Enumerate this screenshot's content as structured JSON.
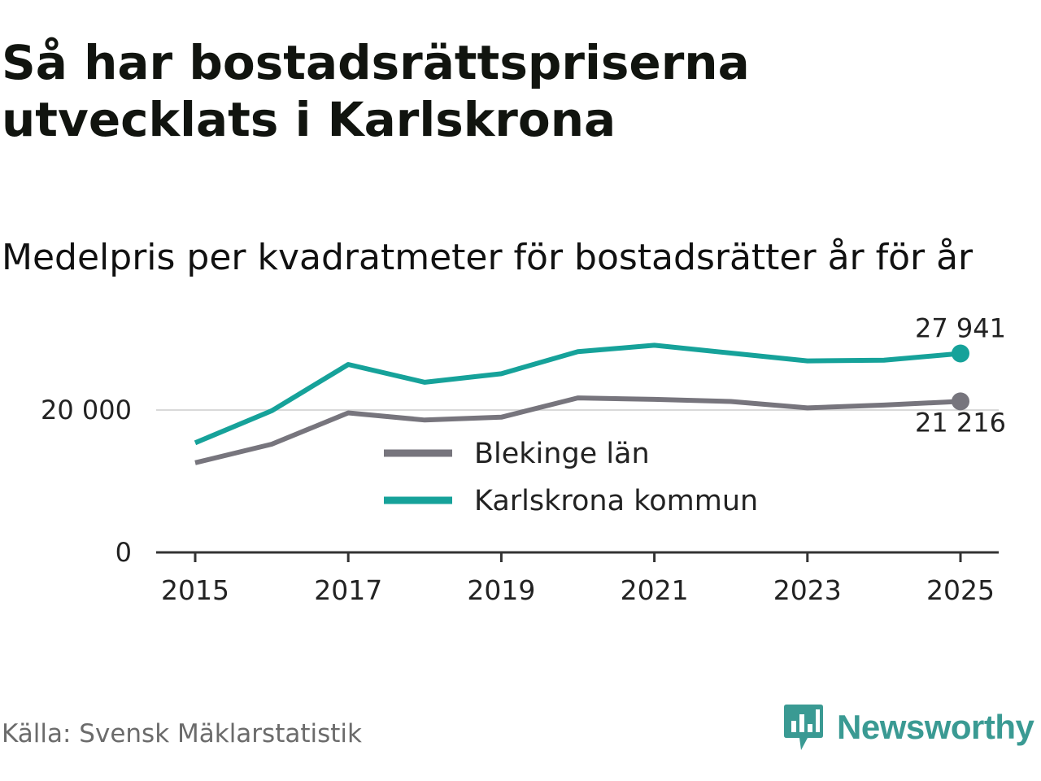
{
  "title": "Så har bostadsrättspriserna utvecklats i Karlskrona",
  "subtitle": "Medelpris per kvadratmeter för bostadsrätter år för år",
  "source": "Källa: Svensk Mäklarstatistik",
  "brand": "Newsworthy",
  "colors": {
    "blekinge": "#77757d",
    "karlskrona": "#16a29a",
    "grid": "#d9d9d9",
    "axis": "#333333",
    "brand": "#3a9a93"
  },
  "chart_data": {
    "type": "line",
    "x": [
      2015,
      2016,
      2017,
      2018,
      2019,
      2020,
      2021,
      2022,
      2023,
      2024,
      2025
    ],
    "series": [
      {
        "name": "Blekinge län",
        "color_key": "blekinge",
        "values": [
          12600,
          15200,
          19600,
          18600,
          19000,
          21700,
          21500,
          21200,
          20300,
          20700,
          21216
        ],
        "end_label": "21 216"
      },
      {
        "name": "Karlskrona kommun",
        "color_key": "karlskrona",
        "values": [
          15400,
          19900,
          26400,
          23900,
          25100,
          28200,
          29100,
          28000,
          26900,
          27000,
          27941
        ],
        "end_label": "27 941"
      }
    ],
    "y_ticks": [
      0,
      20000
    ],
    "y_tick_labels": [
      "0",
      "20 000"
    ],
    "x_ticks": [
      2015,
      2017,
      2019,
      2021,
      2023,
      2025
    ],
    "x_tick_labels": [
      "2015",
      "2017",
      "2019",
      "2021",
      "2023",
      "2025"
    ],
    "ylim": [
      0,
      32000
    ],
    "xlim": [
      2015,
      2025
    ],
    "grid": true,
    "legend": "center"
  }
}
